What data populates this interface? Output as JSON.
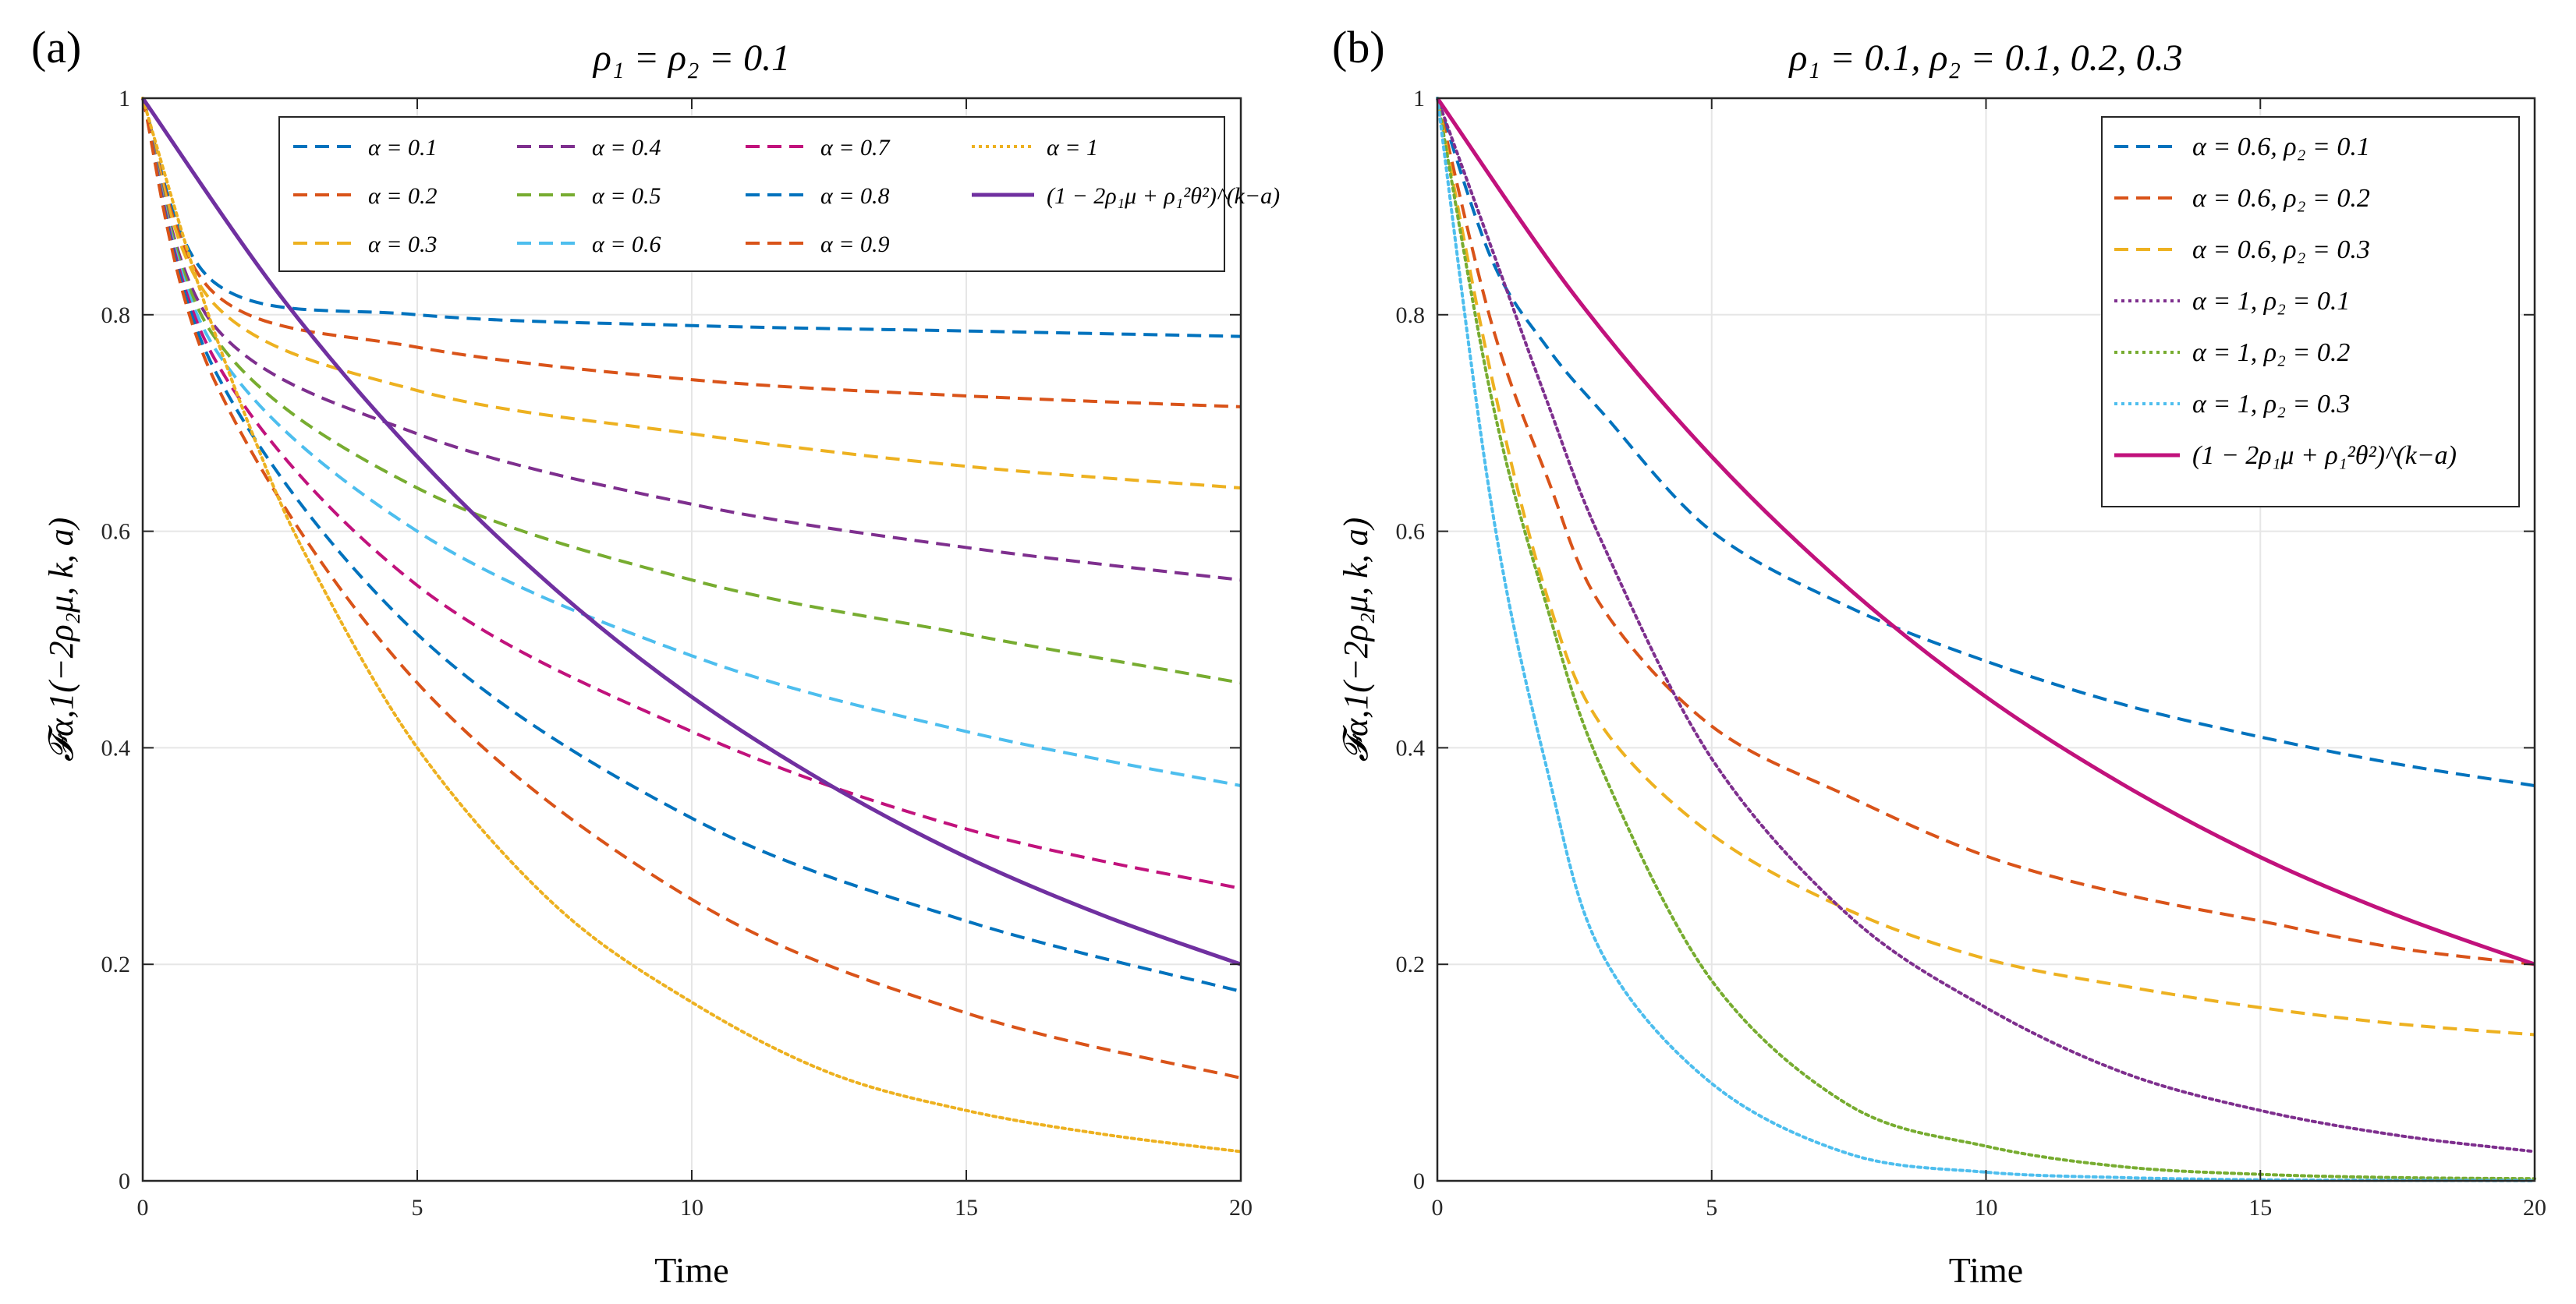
{
  "figure": {
    "panels": [
      {
        "panel_label": "(a)",
        "title": "ρ₁ = ρ₂ = 0.1",
        "xlabel": "Time",
        "ylabel": "𝓕α,1(−2ρ₂μ, k, a)",
        "x_ticks": [
          "0",
          "5",
          "10",
          "15",
          "20"
        ],
        "y_ticks": [
          "0",
          "0.2",
          "0.4",
          "0.6",
          "0.8",
          "1"
        ]
      },
      {
        "panel_label": "(b)",
        "title": "ρ₁ = 0.1,    ρ₂ = 0.1, 0.2, 0.3",
        "xlabel": "Time",
        "ylabel": "𝓕α,1(−2ρ₂μ, k, a)",
        "x_ticks": [
          "0",
          "5",
          "10",
          "15",
          "20"
        ],
        "y_ticks": [
          "0",
          "0.2",
          "0.4",
          "0.6",
          "0.8",
          "1"
        ]
      }
    ]
  },
  "chart_data": [
    {
      "type": "line",
      "title": "ρ₁ = ρ₂ = 0.1",
      "xlabel": "Time",
      "ylabel": "𝓕α,1(−2ρ₂μ, k, a)",
      "xlim": [
        0,
        20
      ],
      "ylim": [
        0,
        1
      ],
      "grid": true,
      "legend_position": "top-right",
      "series": [
        {
          "name": "α = 0.1",
          "color": "#0072BD",
          "style": "dashed",
          "x": [
            0,
            1.3,
            5,
            10,
            15,
            20
          ],
          "values": [
            1,
            0.83,
            0.8,
            0.79,
            0.785,
            0.78
          ]
        },
        {
          "name": "α = 0.2",
          "color": "#D95319",
          "style": "dashed",
          "x": [
            0,
            1.3,
            5,
            10,
            15,
            20
          ],
          "values": [
            1,
            0.82,
            0.77,
            0.74,
            0.725,
            0.715
          ]
        },
        {
          "name": "α = 0.3",
          "color": "#EDB120",
          "style": "dashed",
          "x": [
            0,
            1.3,
            5,
            10,
            15,
            20
          ],
          "values": [
            1,
            0.81,
            0.73,
            0.69,
            0.66,
            0.64
          ]
        },
        {
          "name": "α = 0.4",
          "color": "#7E2F8E",
          "style": "dashed",
          "x": [
            0,
            1.3,
            5,
            10,
            15,
            20
          ],
          "values": [
            1,
            0.79,
            0.69,
            0.625,
            0.585,
            0.555
          ]
        },
        {
          "name": "α = 0.5",
          "color": "#77AC30",
          "style": "dashed",
          "x": [
            0,
            1.3,
            5,
            10,
            15,
            20
          ],
          "values": [
            1,
            0.78,
            0.64,
            0.555,
            0.505,
            0.46
          ]
        },
        {
          "name": "α = 0.6",
          "color": "#4DBEEE",
          "style": "dashed",
          "x": [
            0,
            1.3,
            5,
            10,
            15,
            20
          ],
          "values": [
            1,
            0.77,
            0.6,
            0.485,
            0.415,
            0.365
          ]
        },
        {
          "name": "α = 0.7",
          "color": "#C1127C",
          "style": "dashed",
          "x": [
            0,
            1.3,
            5,
            10,
            15,
            20
          ],
          "values": [
            1,
            0.76,
            0.55,
            0.415,
            0.325,
            0.27
          ]
        },
        {
          "name": "α = 0.8",
          "color": "#0072BD",
          "style": "dashed",
          "x": [
            0,
            1.3,
            5,
            10,
            15,
            20
          ],
          "values": [
            1,
            0.75,
            0.505,
            0.335,
            0.24,
            0.175
          ]
        },
        {
          "name": "α = 0.9",
          "color": "#D95319",
          "style": "dashed",
          "x": [
            0,
            1.3,
            5,
            10,
            15,
            20
          ],
          "values": [
            1,
            0.74,
            0.46,
            0.26,
            0.155,
            0.095
          ]
        },
        {
          "name": "α = 1",
          "color": "#EDB120",
          "style": "dotted",
          "x": [
            0,
            1,
            2,
            3,
            5,
            7.5,
            10,
            12.5,
            15,
            17.5,
            20
          ],
          "values": [
            1,
            0.83,
            0.69,
            0.575,
            0.4,
            0.255,
            0.165,
            0.1,
            0.065,
            0.043,
            0.027
          ]
        },
        {
          "name": "(1 − 2ρ₁μ + ρ₁²θ²)^(k−a)",
          "color": "#7030A0",
          "style": "solid",
          "x": [
            0,
            2.5,
            5,
            7.5,
            10,
            12.5,
            15,
            17.5,
            20
          ],
          "values": [
            1,
            0.818,
            0.669,
            0.547,
            0.447,
            0.366,
            0.299,
            0.245,
            0.2
          ]
        }
      ]
    },
    {
      "type": "line",
      "title": "ρ₁ = 0.1,    ρ₂ = 0.1, 0.2, 0.3",
      "xlabel": "Time",
      "ylabel": "𝓕α,1(−2ρ₂μ, k, a)",
      "xlim": [
        0,
        20
      ],
      "ylim": [
        0,
        1
      ],
      "grid": true,
      "legend_position": "top-right",
      "series": [
        {
          "name": "α = 0.6,    ρ₂ = 0.1",
          "color": "#0072BD",
          "style": "dashed",
          "x": [
            0,
            1,
            2,
            3,
            5,
            7.5,
            10,
            12.5,
            15,
            17.5,
            20
          ],
          "values": [
            1,
            0.85,
            0.77,
            0.71,
            0.6,
            0.53,
            0.48,
            0.44,
            0.41,
            0.385,
            0.365
          ]
        },
        {
          "name": "α = 0.6,    ρ₂ = 0.2",
          "color": "#D95319",
          "style": "dashed",
          "x": [
            0,
            1,
            2,
            3,
            5,
            7.5,
            10,
            12.5,
            15,
            17.5,
            20
          ],
          "values": [
            1,
            0.79,
            0.65,
            0.53,
            0.42,
            0.355,
            0.3,
            0.265,
            0.24,
            0.215,
            0.2
          ]
        },
        {
          "name": "α = 0.6,    ρ₂ = 0.3",
          "color": "#EDB120",
          "style": "dashed",
          "x": [
            0,
            1,
            2,
            3,
            5,
            7.5,
            10,
            12.5,
            15,
            17.5,
            20
          ],
          "values": [
            1,
            0.74,
            0.54,
            0.42,
            0.32,
            0.25,
            0.205,
            0.18,
            0.16,
            0.145,
            0.135
          ]
        },
        {
          "name": "α = 1,    ρ₂ = 0.1",
          "color": "#7E2F8E",
          "style": "dotted",
          "x": [
            0,
            1,
            2,
            3,
            5,
            7.5,
            10,
            12.5,
            15,
            17.5,
            20
          ],
          "values": [
            1,
            0.86,
            0.72,
            0.59,
            0.39,
            0.245,
            0.16,
            0.1,
            0.065,
            0.042,
            0.027
          ]
        },
        {
          "name": "α = 1,    ρ₂ = 0.2",
          "color": "#77AC30",
          "style": "dotted",
          "x": [
            0,
            1,
            2,
            3,
            5,
            7.5,
            10,
            12.5,
            15,
            17.5,
            20
          ],
          "values": [
            1,
            0.72,
            0.53,
            0.38,
            0.185,
            0.07,
            0.032,
            0.013,
            0.006,
            0.003,
            0.002
          ]
        },
        {
          "name": "α = 1,    ρ₂ = 0.3",
          "color": "#4DBEEE",
          "style": "dotted",
          "x": [
            0,
            1,
            2,
            3,
            5,
            7.5,
            10,
            12.5,
            15,
            17.5,
            20
          ],
          "values": [
            1,
            0.62,
            0.38,
            0.21,
            0.09,
            0.025,
            0.008,
            0.003,
            0.001,
            0.0005,
            0.0002
          ]
        },
        {
          "name": "(1 − 2ρ₁μ + ρ₁²θ²)^(k−a)",
          "color": "#C1127C",
          "style": "solid",
          "x": [
            0,
            2.5,
            5,
            7.5,
            10,
            12.5,
            15,
            17.5,
            20
          ],
          "values": [
            1,
            0.818,
            0.669,
            0.547,
            0.447,
            0.366,
            0.299,
            0.245,
            0.2
          ]
        }
      ]
    }
  ]
}
